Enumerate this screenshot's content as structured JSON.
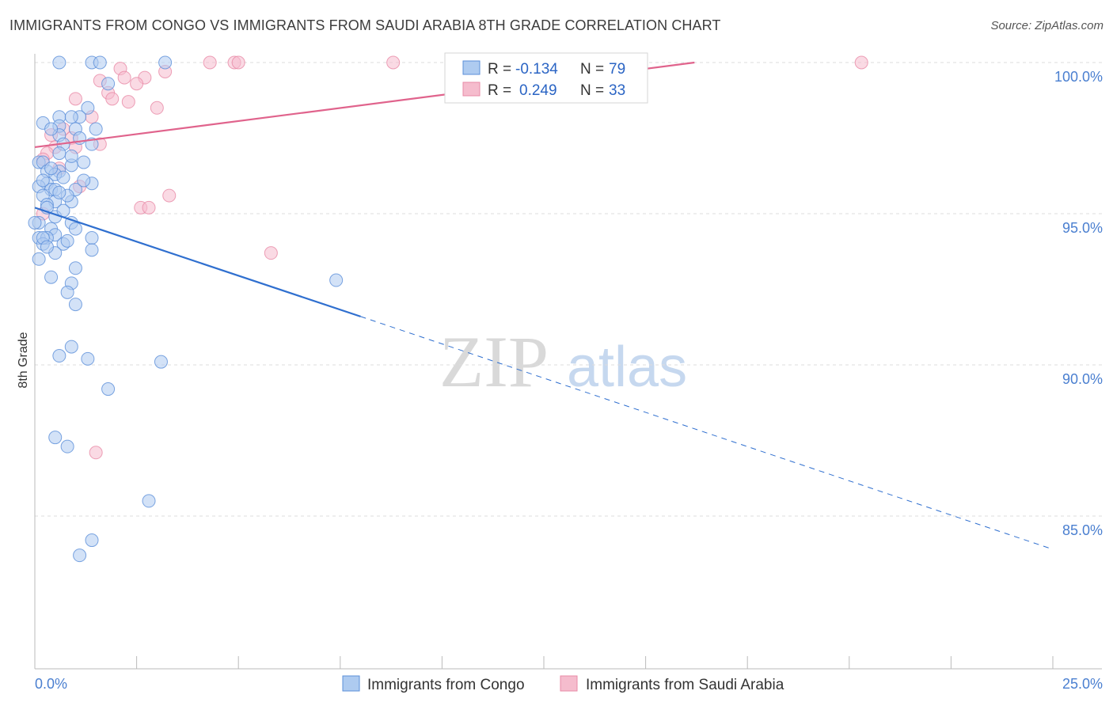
{
  "title": "IMMIGRANTS FROM CONGO VS IMMIGRANTS FROM SAUDI ARABIA 8TH GRADE CORRELATION CHART",
  "source": "Source: ZipAtlas.com",
  "watermark": {
    "zip": "ZIP",
    "atlas": "atlas"
  },
  "colors": {
    "blue_fill": "#aecbf0",
    "blue_stroke": "#5b8fd9",
    "blue_line": "#2f6fcf",
    "pink_fill": "#f5bccd",
    "pink_stroke": "#e88aa6",
    "pink_line": "#e0638c",
    "tick_label": "#4a7fd0",
    "grid": "#dddddd"
  },
  "legend": {
    "rows": [
      {
        "r_label": "R =",
        "r_value": "-0.134",
        "n_label": "N =",
        "n_value": "79",
        "series": "congo"
      },
      {
        "r_label": "R =",
        "r_value": "0.249",
        "n_label": "N =",
        "n_value": "33",
        "series": "saudi"
      }
    ]
  },
  "bottom_legend": [
    {
      "label": "Immigrants from Congo",
      "series": "congo"
    },
    {
      "label": "Immigrants from Saudi Arabia",
      "series": "saudi"
    }
  ],
  "chart_data": {
    "type": "scatter",
    "title": "IMMIGRANTS FROM CONGO VS IMMIGRANTS FROM SAUDI ARABIA 8TH GRADE CORRELATION CHART",
    "xlabel": "",
    "ylabel": "8th Grade",
    "xlim": [
      0,
      25
    ],
    "ylim": [
      80.6,
      100.5
    ],
    "x_tick_labels": [
      {
        "value": 0,
        "label": "0.0%"
      },
      {
        "value": 25,
        "label": "25.0%"
      }
    ],
    "y_tick_labels": [
      {
        "value": 100,
        "label": "100.0%"
      },
      {
        "value": 95,
        "label": "95.0%"
      },
      {
        "value": 90,
        "label": "90.0%"
      },
      {
        "value": 85,
        "label": "85.0%"
      }
    ],
    "series": [
      {
        "name": "Immigrants from Congo",
        "key": "congo",
        "r": -0.134,
        "n": 79,
        "trend": {
          "x0": 0,
          "y0": 95.2,
          "x1": 8.0,
          "y1": 91.6,
          "dash_to_x": 25,
          "dash_to_y": 83.9
        },
        "points": [
          [
            0.6,
            100
          ],
          [
            1.4,
            100
          ],
          [
            1.6,
            100
          ],
          [
            3.2,
            100
          ],
          [
            1.8,
            99.3
          ],
          [
            1.3,
            98.5
          ],
          [
            1.1,
            98.2
          ],
          [
            0.6,
            98.2
          ],
          [
            0.9,
            98.2
          ],
          [
            0.2,
            98.0
          ],
          [
            0.6,
            97.9
          ],
          [
            1.0,
            97.8
          ],
          [
            1.5,
            97.8
          ],
          [
            0.6,
            97.6
          ],
          [
            0.7,
            97.3
          ],
          [
            1.4,
            97.3
          ],
          [
            0.1,
            96.7
          ],
          [
            0.2,
            96.7
          ],
          [
            1.2,
            96.7
          ],
          [
            0.9,
            96.6
          ],
          [
            0.3,
            96.4
          ],
          [
            0.6,
            96.4
          ],
          [
            0.5,
            96.3
          ],
          [
            0.7,
            96.2
          ],
          [
            0.3,
            96.0
          ],
          [
            1.4,
            96.0
          ],
          [
            0.1,
            95.9
          ],
          [
            0.4,
            95.8
          ],
          [
            0.5,
            95.8
          ],
          [
            1.0,
            95.8
          ],
          [
            0.2,
            95.6
          ],
          [
            0.5,
            95.4
          ],
          [
            0.9,
            95.4
          ],
          [
            0.3,
            95.3
          ],
          [
            0.1,
            94.7
          ],
          [
            0.9,
            94.7
          ],
          [
            0.4,
            94.5
          ],
          [
            0.5,
            94.3
          ],
          [
            1.4,
            94.2
          ],
          [
            0.1,
            94.2
          ],
          [
            0.3,
            94.2
          ],
          [
            0.2,
            94.0
          ],
          [
            0.7,
            94.0
          ],
          [
            1.4,
            93.8
          ],
          [
            0.5,
            93.7
          ],
          [
            0.1,
            93.5
          ],
          [
            1.0,
            93.2
          ],
          [
            0.4,
            92.9
          ],
          [
            0.9,
            92.7
          ],
          [
            7.4,
            92.8
          ],
          [
            0.8,
            92.4
          ],
          [
            1.0,
            92.0
          ],
          [
            0.9,
            90.6
          ],
          [
            0.6,
            90.3
          ],
          [
            1.3,
            90.2
          ],
          [
            3.1,
            90.1
          ],
          [
            1.8,
            89.2
          ],
          [
            0.5,
            87.6
          ],
          [
            0.8,
            87.3
          ],
          [
            2.8,
            85.5
          ],
          [
            1.4,
            84.2
          ],
          [
            1.1,
            83.7
          ],
          [
            0.0,
            94.7
          ],
          [
            0.2,
            94.2
          ],
          [
            0.4,
            96.5
          ],
          [
            0.8,
            95.6
          ],
          [
            1.2,
            96.1
          ],
          [
            0.6,
            97.0
          ],
          [
            0.3,
            95.2
          ],
          [
            0.9,
            96.9
          ],
          [
            0.5,
            94.9
          ],
          [
            1.0,
            94.5
          ],
          [
            0.2,
            96.1
          ],
          [
            0.7,
            95.1
          ],
          [
            1.1,
            97.5
          ],
          [
            0.4,
            97.8
          ],
          [
            0.8,
            94.1
          ],
          [
            0.6,
            95.7
          ],
          [
            0.3,
            93.9
          ]
        ]
      },
      {
        "name": "Immigrants from Saudi Arabia",
        "key": "saudi",
        "r": 0.249,
        "n": 33,
        "trend": {
          "x0": 0,
          "y0": 97.2,
          "x1": 16.2,
          "y1": 100.0
        },
        "points": [
          [
            4.3,
            100
          ],
          [
            4.9,
            100
          ],
          [
            5.0,
            100
          ],
          [
            8.8,
            100
          ],
          [
            20.3,
            100
          ],
          [
            2.1,
            99.8
          ],
          [
            3.2,
            99.7
          ],
          [
            2.2,
            99.5
          ],
          [
            2.7,
            99.5
          ],
          [
            1.6,
            99.4
          ],
          [
            2.5,
            99.3
          ],
          [
            1.8,
            99.0
          ],
          [
            1.0,
            98.8
          ],
          [
            1.9,
            98.8
          ],
          [
            2.3,
            98.7
          ],
          [
            3.0,
            98.5
          ],
          [
            1.4,
            98.2
          ],
          [
            0.7,
            97.8
          ],
          [
            0.4,
            97.6
          ],
          [
            0.9,
            97.5
          ],
          [
            1.6,
            97.3
          ],
          [
            0.5,
            97.2
          ],
          [
            1.0,
            97.2
          ],
          [
            0.3,
            97.0
          ],
          [
            0.2,
            96.8
          ],
          [
            0.6,
            96.5
          ],
          [
            1.1,
            95.9
          ],
          [
            3.3,
            95.6
          ],
          [
            2.6,
            95.2
          ],
          [
            2.8,
            95.2
          ],
          [
            0.2,
            95.0
          ],
          [
            5.8,
            93.7
          ],
          [
            1.5,
            87.1
          ]
        ]
      }
    ]
  }
}
